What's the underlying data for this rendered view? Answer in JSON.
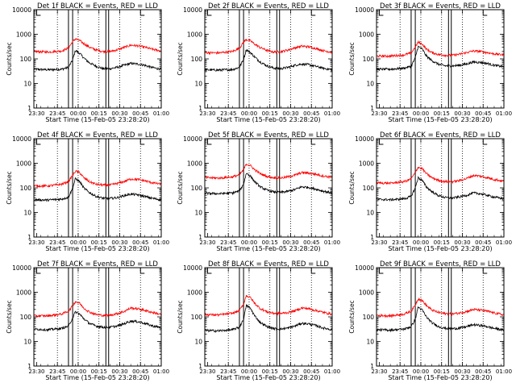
{
  "chart_data": {
    "type": "line",
    "yscale": "log",
    "ylim": [
      1,
      10000
    ],
    "ytick_labels": [
      "1",
      "10",
      "100",
      "1000",
      "10000"
    ],
    "xtick_labels": [
      "23:30",
      "23:45",
      "00:00",
      "00:15",
      "00:30",
      "00:45",
      "01:00"
    ],
    "xlabel": "Start Time (15-Feb-05 23:28:20)",
    "ylabel": "Counts/sec",
    "series_colors": {
      "events": "#000000",
      "lld": "#ff0000"
    },
    "panels": [
      {
        "title": "Det 1f BLACK = Events, RED = LLD",
        "series": [
          {
            "name": "Events",
            "time_min": [
              0,
              10,
              20,
              25,
              28,
              30,
              33,
              36,
              40,
              45,
              50,
              55,
              60,
              65,
              70,
              75,
              80,
              85,
              92
            ],
            "values": [
              38,
              36,
              38,
              45,
              90,
              220,
              170,
              110,
              70,
              50,
              40,
              40,
              45,
              55,
              65,
              62,
              55,
              45,
              38
            ]
          },
          {
            "name": "LLD",
            "time_min": [
              0,
              10,
              20,
              25,
              28,
              30,
              33,
              36,
              40,
              45,
              50,
              55,
              60,
              65,
              70,
              75,
              80,
              85,
              92
            ],
            "values": [
              200,
              190,
              210,
              280,
              500,
              650,
              560,
              420,
              300,
              230,
              200,
              200,
              230,
              290,
              360,
              340,
              300,
              250,
              210
            ]
          }
        ]
      },
      {
        "title": "Det 2f BLACK = Events, RED = LLD",
        "series": [
          {
            "name": "Events",
            "time_min": [
              0,
              10,
              20,
              25,
              28,
              30,
              33,
              36,
              40,
              45,
              50,
              55,
              60,
              65,
              70,
              75,
              80,
              85,
              92
            ],
            "values": [
              36,
              35,
              37,
              45,
              95,
              240,
              180,
              120,
              75,
              52,
              42,
              40,
              45,
              55,
              62,
              58,
              50,
              42,
              36
            ]
          },
          {
            "name": "LLD",
            "time_min": [
              0,
              10,
              20,
              25,
              28,
              30,
              33,
              36,
              40,
              45,
              50,
              55,
              60,
              65,
              70,
              75,
              80,
              85,
              92
            ],
            "values": [
              180,
              175,
              200,
              270,
              480,
              620,
              540,
              400,
              290,
              220,
              190,
              195,
              230,
              280,
              330,
              310,
              270,
              220,
              185
            ]
          }
        ]
      },
      {
        "title": "Det 3f BLACK = Events, RED = LLD",
        "series": [
          {
            "name": "Events",
            "time_min": [
              0,
              10,
              20,
              25,
              28,
              30,
              33,
              36,
              40,
              45,
              50,
              55,
              60,
              65,
              70,
              75,
              80,
              85,
              92
            ],
            "values": [
              38,
              38,
              42,
              50,
              110,
              320,
              250,
              130,
              85,
              60,
              52,
              52,
              55,
              62,
              75,
              72,
              65,
              55,
              48
            ]
          },
          {
            "name": "LLD",
            "time_min": [
              0,
              10,
              20,
              25,
              28,
              30,
              33,
              36,
              40,
              45,
              50,
              55,
              60,
              65,
              70,
              75,
              80,
              85,
              92
            ],
            "values": [
              130,
              130,
              145,
              175,
              300,
              480,
              400,
              250,
              180,
              150,
              140,
              140,
              155,
              180,
              210,
              200,
              180,
              160,
              145
            ]
          }
        ]
      },
      {
        "title": "Det 4f BLACK = Events, RED = LLD",
        "series": [
          {
            "name": "Events",
            "time_min": [
              0,
              10,
              20,
              25,
              28,
              30,
              33,
              36,
              40,
              45,
              50,
              55,
              60,
              65,
              70,
              75,
              80,
              85,
              92
            ],
            "values": [
              33,
              32,
              35,
              42,
              95,
              240,
              180,
              100,
              65,
              45,
              38,
              37,
              40,
              48,
              56,
              52,
              45,
              38,
              33
            ]
          },
          {
            "name": "LLD",
            "time_min": [
              0,
              10,
              20,
              25,
              28,
              30,
              33,
              36,
              40,
              45,
              50,
              55,
              60,
              65,
              70,
              75,
              80,
              85,
              92
            ],
            "values": [
              120,
              120,
              140,
              180,
              320,
              480,
              420,
              260,
              180,
              140,
              130,
              130,
              150,
              180,
              230,
              220,
              195,
              165,
              140
            ]
          }
        ]
      },
      {
        "title": "Det 5f BLACK = Events, RED = LLD",
        "series": [
          {
            "name": "Events",
            "time_min": [
              0,
              10,
              20,
              25,
              28,
              30,
              33,
              36,
              40,
              45,
              50,
              55,
              60,
              65,
              70,
              75,
              80,
              85,
              92
            ],
            "values": [
              60,
              58,
              62,
              75,
              140,
              400,
              300,
              180,
              110,
              80,
              68,
              66,
              72,
              85,
              110,
              105,
              90,
              75,
              62
            ]
          },
          {
            "name": "LLD",
            "time_min": [
              0,
              10,
              20,
              25,
              28,
              30,
              33,
              36,
              40,
              45,
              50,
              55,
              60,
              65,
              70,
              75,
              80,
              85,
              92
            ],
            "values": [
              260,
              250,
              280,
              340,
              550,
              950,
              800,
              550,
              380,
              290,
              260,
              255,
              280,
              330,
              420,
              400,
              360,
              310,
              270
            ]
          }
        ]
      },
      {
        "title": "Det 6f BLACK = Events, RED = LLD",
        "series": [
          {
            "name": "Events",
            "time_min": [
              0,
              10,
              20,
              25,
              28,
              30,
              33,
              36,
              40,
              45,
              50,
              55,
              60,
              65,
              70,
              75,
              80,
              85,
              92
            ],
            "values": [
              34,
              33,
              36,
              45,
              100,
              260,
              200,
              110,
              70,
              48,
              40,
              39,
              43,
              50,
              62,
              58,
              50,
              42,
              36
            ]
          },
          {
            "name": "LLD",
            "time_min": [
              0,
              10,
              20,
              25,
              28,
              30,
              33,
              36,
              40,
              45,
              50,
              55,
              60,
              65,
              70,
              75,
              80,
              85,
              92
            ],
            "values": [
              160,
              155,
              180,
              230,
              420,
              700,
              600,
              380,
              260,
              200,
              180,
              178,
              200,
              240,
              320,
              300,
              260,
              220,
              185
            ]
          }
        ]
      },
      {
        "title": "Det 7f BLACK = Events, RED = LLD",
        "series": [
          {
            "name": "Events",
            "time_min": [
              0,
              10,
              20,
              25,
              28,
              30,
              33,
              36,
              40,
              45,
              50,
              55,
              60,
              65,
              70,
              75,
              80,
              85,
              92
            ],
            "values": [
              32,
              30,
              34,
              42,
              90,
              160,
              130,
              85,
              55,
              42,
              38,
              38,
              42,
              52,
              68,
              64,
              55,
              44,
              36
            ]
          },
          {
            "name": "LLD",
            "time_min": [
              0,
              10,
              20,
              25,
              28,
              30,
              33,
              36,
              40,
              45,
              50,
              55,
              60,
              65,
              70,
              75,
              80,
              85,
              92
            ],
            "values": [
              110,
              110,
              130,
              170,
              280,
              420,
              360,
              230,
              160,
              125,
              115,
              118,
              135,
              165,
              230,
              215,
              185,
              155,
              125
            ]
          }
        ]
      },
      {
        "title": "Det 8f BLACK = Events, RED = LLD",
        "series": [
          {
            "name": "Events",
            "time_min": [
              0,
              10,
              20,
              25,
              28,
              30,
              33,
              36,
              40,
              45,
              50,
              55,
              60,
              65,
              70,
              75,
              80,
              85,
              92
            ],
            "values": [
              28,
              27,
              30,
              38,
              80,
              300,
              220,
              110,
              60,
              40,
              33,
              32,
              35,
              42,
              55,
              52,
              45,
              36,
              30
            ]
          },
          {
            "name": "LLD",
            "time_min": [
              0,
              10,
              20,
              25,
              28,
              30,
              33,
              36,
              40,
              45,
              50,
              55,
              60,
              65,
              70,
              75,
              80,
              85,
              92
            ],
            "values": [
              125,
              120,
              140,
              180,
              330,
              750,
              600,
              360,
              220,
              160,
              140,
              138,
              150,
              175,
              230,
              215,
              185,
              155,
              130
            ]
          }
        ]
      },
      {
        "title": "Det 9f BLACK = Events, RED = LLD",
        "series": [
          {
            "name": "Events",
            "time_min": [
              0,
              10,
              20,
              25,
              28,
              30,
              33,
              36,
              40,
              45,
              50,
              55,
              60,
              65,
              70,
              75,
              80,
              85,
              92
            ],
            "values": [
              30,
              29,
              32,
              40,
              80,
              250,
              190,
              100,
              58,
              40,
              34,
              33,
              35,
              40,
              48,
              45,
              40,
              34,
              29
            ]
          },
          {
            "name": "LLD",
            "time_min": [
              0,
              10,
              20,
              25,
              28,
              30,
              33,
              36,
              40,
              45,
              50,
              55,
              60,
              65,
              70,
              75,
              80,
              85,
              92
            ],
            "values": [
              115,
              110,
              130,
              170,
              300,
              550,
              460,
              290,
              190,
              150,
              135,
              132,
              145,
              165,
              200,
              190,
              170,
              145,
              120
            ]
          }
        ]
      }
    ],
    "markers": {
      "dotted_min": [
        17,
        32,
        47,
        62,
        77
      ],
      "solid_pair1_min": [
        25,
        28
      ],
      "solid_pair2_min": [
        52,
        54
      ]
    },
    "xlim_min": [
      0,
      92
    ]
  }
}
